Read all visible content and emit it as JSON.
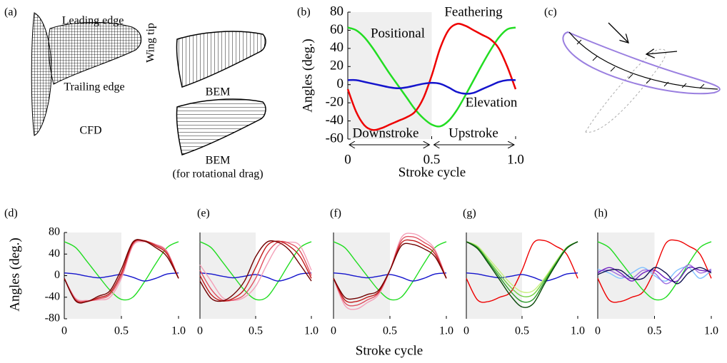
{
  "panel_a": {
    "label": "(a)",
    "leading_edge": "Leading edge",
    "wing_tip": "Wing tip",
    "trailing_edge": "Trailing edge",
    "cfd": "CFD",
    "bem_1": "BEM",
    "bem_2": "BEM",
    "bem_2_note": "(for rotational drag)"
  },
  "panel_c": {
    "label": "(c)"
  },
  "bottom_xlabel": "Stroke cycle",
  "bottom_ylabel": "Angles (deg.)",
  "chart_data": [
    {
      "type": "line",
      "panel_label": "(b)",
      "ylabel": "Angles (deg.)",
      "xlabel": "Stroke cycle",
      "annotations": [
        "Downstroke",
        "Upstroke"
      ],
      "shaded_xrange": [
        0,
        0.5
      ],
      "x": [
        0,
        0.05,
        0.1,
        0.15,
        0.2,
        0.25,
        0.3,
        0.35,
        0.4,
        0.45,
        0.5,
        0.55,
        0.6,
        0.65,
        0.7,
        0.75,
        0.8,
        0.85,
        0.9,
        0.95,
        1
      ],
      "xlim": [
        0,
        1
      ],
      "xticks": [
        0,
        0.5,
        {
          "value": 1,
          "label": "1.0"
        }
      ],
      "ylim": [
        -60,
        80
      ],
      "yticks": [
        -60,
        -40,
        -20,
        0,
        20,
        40,
        60,
        80
      ],
      "series": [
        {
          "name": "Positional",
          "color": "#22dd22",
          "values": [
            63,
            60,
            52,
            40,
            26,
            12,
            -1,
            -14,
            -27,
            -37,
            -44,
            -46,
            -40,
            -28,
            -12,
            5,
            22,
            38,
            52,
            61,
            63
          ]
        },
        {
          "name": "Feathering",
          "color": "#ee0000",
          "values": [
            -5,
            -30,
            -45,
            -50,
            -48,
            -44,
            -40,
            -36,
            -30,
            -15,
            10,
            40,
            60,
            67,
            65,
            60,
            55,
            50,
            40,
            20,
            -5
          ]
        },
        {
          "name": "Elevation",
          "color": "#1414cc",
          "values": [
            5,
            5,
            3,
            1,
            -1,
            -3,
            -4,
            -3,
            -1,
            1,
            2,
            1,
            -3,
            -8,
            -10,
            -9,
            -5,
            -1,
            3,
            5,
            5
          ]
        }
      ]
    },
    {
      "type": "line",
      "panel_label": "(d)",
      "shaded_xrange": [
        0,
        0.5
      ],
      "x": [
        0,
        0.1,
        0.2,
        0.3,
        0.4,
        0.5,
        0.6,
        0.7,
        0.8,
        0.9,
        1
      ],
      "xlim": [
        0,
        1
      ],
      "xticks": [
        0,
        0.5,
        {
          "value": 1,
          "label": "1.0"
        }
      ],
      "ylim": [
        -80,
        80
      ],
      "yticks": [
        -80,
        -40,
        0,
        40,
        80
      ],
      "series": [
        {
          "color": "#22dd22",
          "values": [
            63,
            52,
            26,
            -1,
            -27,
            -44,
            -40,
            -12,
            22,
            52,
            63
          ]
        },
        {
          "color": "#1414cc",
          "values": [
            5,
            3,
            -1,
            -4,
            -1,
            2,
            -3,
            -10,
            -5,
            3,
            5
          ]
        },
        {
          "color": "#f4a0b8",
          "values": [
            -5,
            -42,
            -46,
            -45,
            -40,
            -5,
            55,
            63,
            58,
            45,
            -5
          ]
        },
        {
          "color": "#e05060",
          "values": [
            -5,
            -44,
            -47,
            -43,
            -35,
            0,
            58,
            64,
            57,
            43,
            -5
          ]
        },
        {
          "color": "#c01818",
          "values": [
            -5,
            -46,
            -48,
            -41,
            -32,
            5,
            60,
            65,
            55,
            40,
            -5
          ]
        },
        {
          "color": "#700000",
          "values": [
            -5,
            -47,
            -48,
            -38,
            -28,
            12,
            62,
            64,
            52,
            35,
            -5
          ]
        }
      ]
    },
    {
      "type": "line",
      "panel_label": "(e)",
      "shaded_xrange": [
        0,
        0.5
      ],
      "x": [
        0,
        0.1,
        0.2,
        0.3,
        0.4,
        0.5,
        0.6,
        0.7,
        0.8,
        0.9,
        1
      ],
      "xlim": [
        0,
        1
      ],
      "xticks": [
        0,
        0.5,
        {
          "value": 1,
          "label": "1.0"
        }
      ],
      "ylim": [
        -80,
        80
      ],
      "series": [
        {
          "color": "#22dd22",
          "values": [
            63,
            52,
            26,
            -1,
            -27,
            -44,
            -40,
            -12,
            22,
            52,
            63
          ]
        },
        {
          "color": "#1414cc",
          "values": [
            5,
            3,
            -1,
            -4,
            -1,
            2,
            -3,
            -10,
            -5,
            3,
            5
          ]
        },
        {
          "color": "#f4a0b8",
          "values": [
            20,
            -10,
            -40,
            -46,
            -40,
            -20,
            20,
            55,
            62,
            55,
            10
          ]
        },
        {
          "color": "#e05060",
          "values": [
            10,
            -25,
            -45,
            -45,
            -35,
            -5,
            40,
            62,
            60,
            45,
            0
          ]
        },
        {
          "color": "#c01818",
          "values": [
            0,
            -35,
            -47,
            -42,
            -25,
            15,
            55,
            64,
            55,
            35,
            -5
          ]
        },
        {
          "color": "#700000",
          "values": [
            -10,
            -42,
            -47,
            -35,
            -10,
            35,
            62,
            62,
            48,
            20,
            -10
          ]
        }
      ]
    },
    {
      "type": "line",
      "panel_label": "(f)",
      "shaded_xrange": [
        0,
        0.5
      ],
      "x": [
        0,
        0.1,
        0.2,
        0.3,
        0.4,
        0.5,
        0.6,
        0.7,
        0.8,
        0.9,
        1
      ],
      "xlim": [
        0,
        1
      ],
      "xticks": [
        0,
        0.5,
        {
          "value": 1,
          "label": "1.0"
        }
      ],
      "ylim": [
        -80,
        80
      ],
      "series": [
        {
          "color": "#22dd22",
          "values": [
            63,
            52,
            26,
            -1,
            -27,
            -44,
            -40,
            -12,
            22,
            52,
            63
          ]
        },
        {
          "color": "#1414cc",
          "values": [
            5,
            3,
            -1,
            -4,
            -1,
            2,
            -3,
            -10,
            -5,
            3,
            5
          ]
        },
        {
          "color": "#f4a0b8",
          "values": [
            -5,
            -55,
            -62,
            -50,
            -35,
            10,
            70,
            78,
            68,
            48,
            -5
          ]
        },
        {
          "color": "#e05060",
          "values": [
            -5,
            -50,
            -55,
            -45,
            -32,
            10,
            65,
            72,
            62,
            45,
            -5
          ]
        },
        {
          "color": "#c01818",
          "values": [
            -5,
            -45,
            -48,
            -40,
            -30,
            10,
            60,
            65,
            56,
            40,
            -5
          ]
        },
        {
          "color": "#700000",
          "values": [
            -5,
            -40,
            -42,
            -35,
            -27,
            10,
            55,
            58,
            50,
            35,
            -5
          ]
        }
      ]
    },
    {
      "type": "line",
      "panel_label": "(g)",
      "shaded_xrange": [
        0,
        0.5
      ],
      "x": [
        0,
        0.1,
        0.2,
        0.3,
        0.4,
        0.5,
        0.6,
        0.7,
        0.8,
        0.9,
        1
      ],
      "xlim": [
        0,
        1
      ],
      "xticks": [
        0,
        0.5,
        {
          "value": 1,
          "label": "1.0"
        }
      ],
      "ylim": [
        -80,
        80
      ],
      "series": [
        {
          "color": "#ee0000",
          "values": [
            -5,
            -45,
            -48,
            -40,
            -30,
            10,
            60,
            65,
            55,
            40,
            -5
          ]
        },
        {
          "color": "#1414cc",
          "values": [
            5,
            3,
            -1,
            -4,
            -1,
            2,
            -3,
            -10,
            -5,
            3,
            5
          ]
        },
        {
          "color": "#c8f080",
          "values": [
            63,
            55,
            32,
            8,
            -15,
            -30,
            -28,
            -5,
            25,
            52,
            63
          ]
        },
        {
          "color": "#70d040",
          "values": [
            63,
            53,
            28,
            2,
            -22,
            -38,
            -35,
            -8,
            23,
            52,
            63
          ]
        },
        {
          "color": "#2a9a2a",
          "values": [
            63,
            52,
            25,
            -3,
            -30,
            -48,
            -44,
            -12,
            21,
            51,
            63
          ]
        },
        {
          "color": "#0a4a0a",
          "values": [
            63,
            50,
            22,
            -8,
            -38,
            -58,
            -52,
            -16,
            19,
            50,
            63
          ]
        }
      ]
    },
    {
      "type": "line",
      "panel_label": "(h)",
      "shaded_xrange": [
        0,
        0.5
      ],
      "x": [
        0,
        0.1,
        0.2,
        0.3,
        0.4,
        0.5,
        0.6,
        0.7,
        0.8,
        0.9,
        1
      ],
      "xlim": [
        0,
        1
      ],
      "xticks": [
        0,
        0.5,
        {
          "value": 1,
          "label": "1.0"
        }
      ],
      "ylim": [
        -80,
        80
      ],
      "series": [
        {
          "color": "#ee0000",
          "values": [
            -5,
            -45,
            -48,
            -40,
            -30,
            10,
            60,
            65,
            55,
            40,
            -5
          ]
        },
        {
          "color": "#22dd22",
          "values": [
            63,
            52,
            26,
            -1,
            -27,
            -44,
            -40,
            -12,
            22,
            52,
            63
          ]
        },
        {
          "color": "#80c0ff",
          "values": [
            12,
            5,
            -5,
            5,
            15,
            0,
            -10,
            10,
            15,
            -5,
            10
          ]
        },
        {
          "color": "#a070e0",
          "values": [
            8,
            10,
            0,
            -5,
            10,
            5,
            -15,
            0,
            20,
            5,
            12
          ]
        },
        {
          "color": "#7020c0",
          "values": [
            5,
            15,
            5,
            -10,
            5,
            10,
            -5,
            -10,
            15,
            10,
            8
          ]
        },
        {
          "color": "#101050",
          "values": [
            2,
            10,
            10,
            -5,
            -5,
            15,
            5,
            -15,
            5,
            15,
            5
          ]
        }
      ]
    }
  ]
}
